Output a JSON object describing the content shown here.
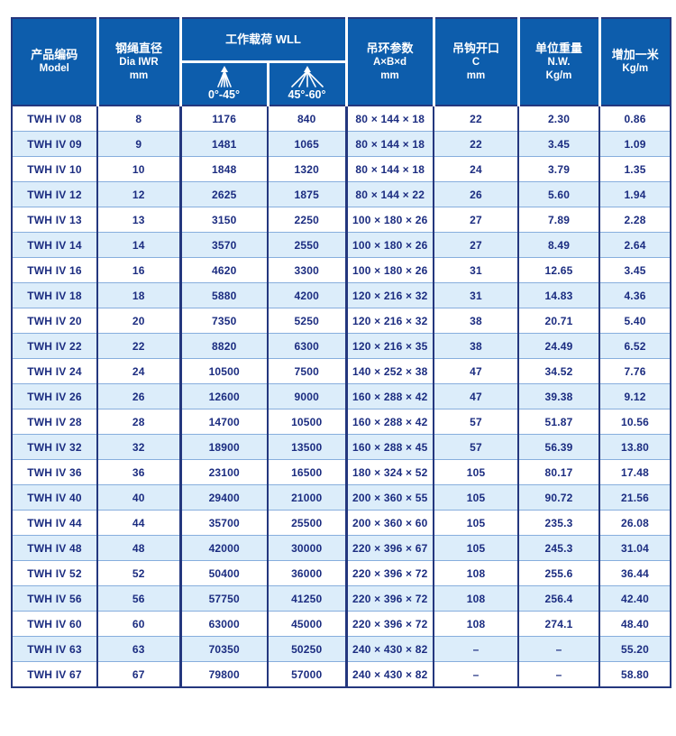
{
  "colors": {
    "header_bg": "#0d5dac",
    "header_text": "#ffffff",
    "frame_border": "#24377e",
    "row_alt_bg": "#dcedfa",
    "row_divider": "#87aedd",
    "cell_text": "#1b2c80"
  },
  "table": {
    "headers": {
      "model": {
        "zh": "产品编码",
        "en": "Model"
      },
      "dia": {
        "zh": "钢绳直径",
        "en": "Dia  IWR",
        "unit": "mm"
      },
      "wll": {
        "zh": "工作载荷 WLL",
        "sub": [
          {
            "label": "0°-45°",
            "icon": "sling-angle-narrow-icon"
          },
          {
            "label": "45°-60°",
            "icon": "sling-angle-wide-icon"
          }
        ]
      },
      "ring": {
        "zh": "吊环参数",
        "en": "A×B×d",
        "unit": "mm"
      },
      "hook": {
        "zh": "吊钩开口",
        "en": "C",
        "unit": "mm"
      },
      "weight": {
        "zh": "单位重量",
        "en": "N.W.",
        "unit": "Kg/m"
      },
      "extra": {
        "zh": "增加一米",
        "unit": "Kg/m"
      }
    },
    "rows": [
      [
        "TWH IV 08",
        "8",
        "1176",
        "840",
        "80 × 144 × 18",
        "22",
        "2.30",
        "0.86"
      ],
      [
        "TWH IV 09",
        "9",
        "1481",
        "1065",
        "80 × 144 × 18",
        "22",
        "3.45",
        "1.09"
      ],
      [
        "TWH IV 10",
        "10",
        "1848",
        "1320",
        "80 × 144 × 18",
        "24",
        "3.79",
        "1.35"
      ],
      [
        "TWH IV 12",
        "12",
        "2625",
        "1875",
        "80 × 144 × 22",
        "26",
        "5.60",
        "1.94"
      ],
      [
        "TWH IV 13",
        "13",
        "3150",
        "2250",
        "100 × 180 × 26",
        "27",
        "7.89",
        "2.28"
      ],
      [
        "TWH IV 14",
        "14",
        "3570",
        "2550",
        "100 × 180 × 26",
        "27",
        "8.49",
        "2.64"
      ],
      [
        "TWH IV 16",
        "16",
        "4620",
        "3300",
        "100 × 180 × 26",
        "31",
        "12.65",
        "3.45"
      ],
      [
        "TWH IV 18",
        "18",
        "5880",
        "4200",
        "120 × 216 × 32",
        "31",
        "14.83",
        "4.36"
      ],
      [
        "TWH IV 20",
        "20",
        "7350",
        "5250",
        "120 × 216 × 32",
        "38",
        "20.71",
        "5.40"
      ],
      [
        "TWH IV 22",
        "22",
        "8820",
        "6300",
        "120 × 216 × 35",
        "38",
        "24.49",
        "6.52"
      ],
      [
        "TWH IV 24",
        "24",
        "10500",
        "7500",
        "140 × 252 × 38",
        "47",
        "34.52",
        "7.76"
      ],
      [
        "TWH IV 26",
        "26",
        "12600",
        "9000",
        "160 × 288 × 42",
        "47",
        "39.38",
        "9.12"
      ],
      [
        "TWH IV 28",
        "28",
        "14700",
        "10500",
        "160 × 288 × 42",
        "57",
        "51.87",
        "10.56"
      ],
      [
        "TWH IV 32",
        "32",
        "18900",
        "13500",
        "160 × 288 × 45",
        "57",
        "56.39",
        "13.80"
      ],
      [
        "TWH IV 36",
        "36",
        "23100",
        "16500",
        "180 × 324 × 52",
        "105",
        "80.17",
        "17.48"
      ],
      [
        "TWH IV 40",
        "40",
        "29400",
        "21000",
        "200 × 360 × 55",
        "105",
        "90.72",
        "21.56"
      ],
      [
        "TWH IV 44",
        "44",
        "35700",
        "25500",
        "200 × 360 × 60",
        "105",
        "235.3",
        "26.08"
      ],
      [
        "TWH IV 48",
        "48",
        "42000",
        "30000",
        "220 × 396 × 67",
        "105",
        "245.3",
        "31.04"
      ],
      [
        "TWH IV 52",
        "52",
        "50400",
        "36000",
        "220 × 396 × 72",
        "108",
        "255.6",
        "36.44"
      ],
      [
        "TWH IV 56",
        "56",
        "57750",
        "41250",
        "220 × 396 × 72",
        "108",
        "256.4",
        "42.40"
      ],
      [
        "TWH IV 60",
        "60",
        "63000",
        "45000",
        "220 × 396 × 72",
        "108",
        "274.1",
        "48.40"
      ],
      [
        "TWH IV 63",
        "63",
        "70350",
        "50250",
        "240 × 430 × 82",
        "–",
        "–",
        "55.20"
      ],
      [
        "TWH IV 67",
        "67",
        "79800",
        "57000",
        "240 × 430 × 82",
        "–",
        "–",
        "58.80"
      ]
    ]
  }
}
